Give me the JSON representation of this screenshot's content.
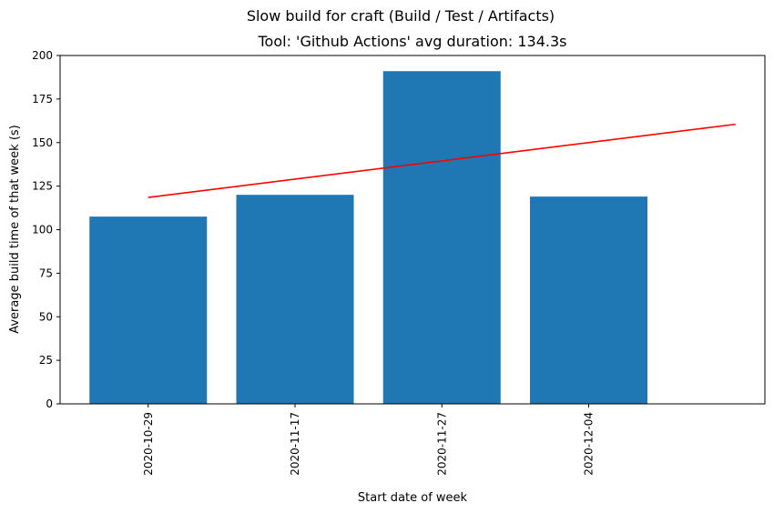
{
  "chart_data": {
    "type": "bar",
    "suptitle": "Slow build for craft (Build / Test / Artifacts)",
    "title": "Tool: 'Github Actions' avg duration: 134.3s",
    "xlabel": "Start date of week",
    "ylabel": "Average build time of that week (s)",
    "categories": [
      "2020-10-29",
      "2020-11-17",
      "2020-11-27",
      "2020-12-04"
    ],
    "series": [
      {
        "values": [
          107.5,
          120,
          191,
          119
        ],
        "color": "#1f77b4"
      }
    ],
    "trendline": {
      "color": "#ff0000",
      "start": [
        0,
        118.5
      ],
      "end": [
        4,
        160.5
      ]
    },
    "ylim": [
      0,
      200
    ],
    "yticks": [
      0,
      25,
      50,
      75,
      100,
      125,
      150,
      175,
      200
    ],
    "xlim": [
      -0.6,
      4.2
    ],
    "grid": false,
    "legend": "none"
  }
}
